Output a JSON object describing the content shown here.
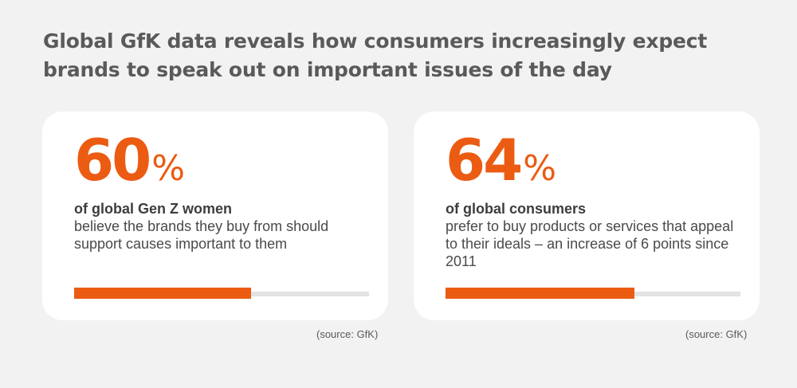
{
  "headline": "Global GfK data reveals how consumers increasingly expect brands to speak out on important issues of the day",
  "accent_color": "#ec5b12",
  "chart_data": [
    {
      "type": "bar",
      "value": 60,
      "unit": "%",
      "max": 100,
      "label_bold": "of global Gen Z women",
      "label_text": "believe the brands they buy from should support causes important to them",
      "source": "(source: GfK)"
    },
    {
      "type": "bar",
      "value": 64,
      "unit": "%",
      "max": 100,
      "label_bold": "of global consumers",
      "label_text": "prefer to buy products or services that appeal to their ideals – an increase of 6 points since 2011",
      "source": "(source: GfK)"
    }
  ]
}
